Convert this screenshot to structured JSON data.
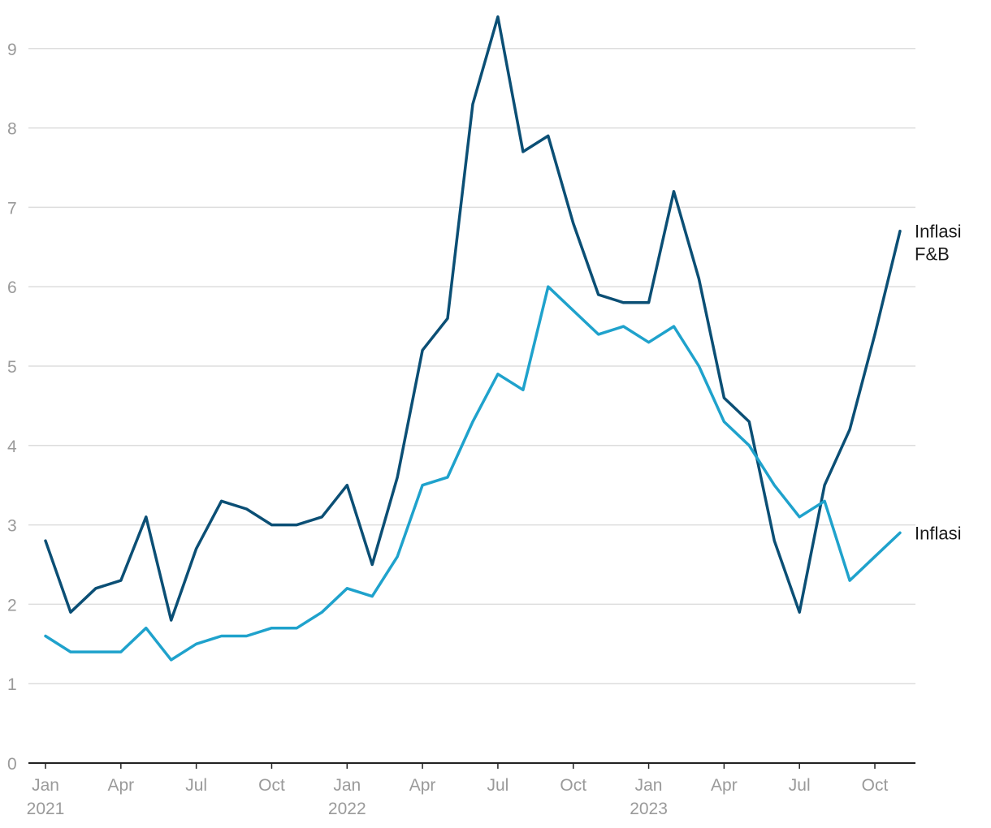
{
  "chart_data": {
    "type": "line",
    "title": "",
    "xlabel": "",
    "ylabel": "",
    "ylim": [
      0,
      9.4
    ],
    "grid": true,
    "yticks": [
      0,
      1,
      2,
      3,
      4,
      5,
      6,
      7,
      8,
      9
    ],
    "x": [
      "2021-01",
      "2021-02",
      "2021-03",
      "2021-04",
      "2021-05",
      "2021-06",
      "2021-07",
      "2021-08",
      "2021-09",
      "2021-10",
      "2021-11",
      "2021-12",
      "2022-01",
      "2022-02",
      "2022-03",
      "2022-04",
      "2022-05",
      "2022-06",
      "2022-07",
      "2022-08",
      "2022-09",
      "2022-10",
      "2022-11",
      "2022-12",
      "2023-01",
      "2023-02",
      "2023-03",
      "2023-04",
      "2023-05",
      "2023-06",
      "2023-07",
      "2023-08",
      "2023-09",
      "2023-10",
      "2023-11"
    ],
    "xtick_labels": [
      {
        "x": "2021-01",
        "month": "Jan",
        "year": "2021"
      },
      {
        "x": "2021-04",
        "month": "Apr",
        "year": ""
      },
      {
        "x": "2021-07",
        "month": "Jul",
        "year": ""
      },
      {
        "x": "2021-10",
        "month": "Oct",
        "year": ""
      },
      {
        "x": "2022-01",
        "month": "Jan",
        "year": "2022"
      },
      {
        "x": "2022-04",
        "month": "Apr",
        "year": ""
      },
      {
        "x": "2022-07",
        "month": "Jul",
        "year": ""
      },
      {
        "x": "2022-10",
        "month": "Oct",
        "year": ""
      },
      {
        "x": "2023-01",
        "month": "Jan",
        "year": "2023"
      },
      {
        "x": "2023-04",
        "month": "Apr",
        "year": ""
      },
      {
        "x": "2023-07",
        "month": "Jul",
        "year": ""
      },
      {
        "x": "2023-10",
        "month": "Oct",
        "year": ""
      }
    ],
    "series": [
      {
        "name": "Inflasi F&B",
        "label_lines": [
          "Inflasi",
          "F&B"
        ],
        "color": "#0b4f75",
        "values": [
          2.8,
          1.9,
          2.2,
          2.3,
          3.1,
          1.8,
          2.7,
          3.3,
          3.2,
          3.0,
          3.0,
          3.1,
          3.5,
          2.5,
          3.6,
          5.2,
          5.6,
          8.3,
          9.4,
          7.7,
          7.9,
          6.8,
          5.9,
          5.8,
          5.8,
          7.2,
          6.1,
          4.6,
          4.3,
          2.8,
          1.9,
          3.5,
          4.2,
          5.4,
          6.7
        ]
      },
      {
        "name": "Inflasi",
        "label_lines": [
          "Inflasi"
        ],
        "color": "#1fa2cc",
        "values": [
          1.6,
          1.4,
          1.4,
          1.4,
          1.7,
          1.3,
          1.5,
          1.6,
          1.6,
          1.7,
          1.7,
          1.9,
          2.2,
          2.1,
          2.6,
          3.5,
          3.6,
          4.3,
          4.9,
          4.7,
          6.0,
          5.7,
          5.4,
          5.5,
          5.3,
          5.5,
          5.0,
          4.3,
          4.0,
          3.5,
          3.1,
          3.3,
          2.3,
          2.6,
          2.9
        ]
      }
    ]
  }
}
